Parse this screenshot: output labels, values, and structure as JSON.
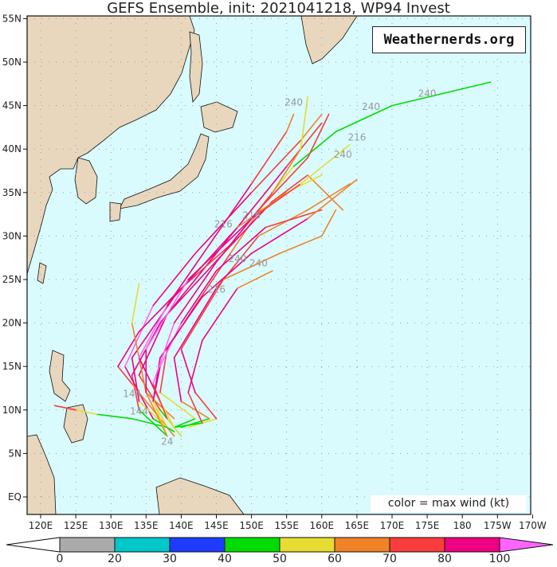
{
  "title": "GEFS Ensemble, init: 2021041218, WP94 Invest",
  "credit": "Weathernerds.org",
  "legend_note": "color = max wind (kt)",
  "map": {
    "lon_range": [
      118,
      190
    ],
    "lat_range": [
      -2,
      56
    ],
    "lon_ticks": [
      "120E",
      "125E",
      "130E",
      "135E",
      "140E",
      "145E",
      "150E",
      "155E",
      "160E",
      "165E",
      "170E",
      "175E",
      "180",
      "175W",
      "170W"
    ],
    "lat_ticks": [
      "EQ",
      "5N",
      "10N",
      "15N",
      "20N",
      "25N",
      "30N",
      "35N",
      "40N",
      "45N",
      "50N",
      "55N"
    ],
    "ocean_color": "#d9fbfd",
    "land_color": "#e8d7bd",
    "grid": true
  },
  "colorbar": {
    "unit": "kt",
    "ticks": [
      "0",
      "20",
      "30",
      "40",
      "50",
      "60",
      "70",
      "80",
      "100"
    ],
    "bins": [
      {
        "min": 0,
        "max": 20,
        "color": "#aaaaaa"
      },
      {
        "min": 20,
        "max": 30,
        "color": "#00c8c8"
      },
      {
        "min": 30,
        "max": 40,
        "color": "#1e3cff"
      },
      {
        "min": 40,
        "max": 50,
        "color": "#00dc00"
      },
      {
        "min": 50,
        "max": 60,
        "color": "#e6dc32"
      },
      {
        "min": 60,
        "max": 70,
        "color": "#f08228"
      },
      {
        "min": 70,
        "max": 80,
        "color": "#fa3c3c"
      },
      {
        "min": 80,
        "max": 100,
        "color": "#f00082"
      },
      {
        "min": 100,
        "max": null,
        "color": "#ff64ff"
      }
    ]
  },
  "tracks": [
    [
      [
        139,
        8,
        35
      ],
      [
        142,
        9,
        40
      ],
      [
        137,
        12,
        55
      ],
      [
        138,
        17,
        75
      ],
      [
        142,
        22,
        85
      ],
      [
        147,
        28,
        75
      ],
      [
        152,
        34,
        60
      ],
      [
        156,
        38,
        50
      ],
      [
        162,
        42,
        45
      ],
      [
        170,
        45,
        45
      ],
      [
        184,
        47.7,
        45
      ]
    ],
    [
      [
        138,
        7,
        30
      ],
      [
        134,
        10,
        45
      ],
      [
        133,
        14,
        70
      ],
      [
        137,
        20,
        90
      ],
      [
        143,
        26,
        95
      ],
      [
        150,
        33,
        85
      ],
      [
        155,
        38,
        80
      ],
      [
        160,
        43,
        75
      ]
    ],
    [
      [
        139,
        7.5,
        30
      ],
      [
        136,
        9,
        40
      ],
      [
        132,
        15,
        80
      ],
      [
        136,
        22,
        100
      ],
      [
        142,
        28,
        95
      ],
      [
        150,
        35,
        85
      ],
      [
        157,
        41,
        70
      ],
      [
        160,
        44,
        65
      ]
    ],
    [
      [
        140,
        8,
        35
      ],
      [
        144,
        9,
        45
      ],
      [
        140,
        11,
        60
      ],
      [
        139,
        16,
        85
      ],
      [
        145,
        24,
        90
      ],
      [
        151,
        30,
        70
      ],
      [
        158,
        33,
        60
      ],
      [
        164,
        36,
        65
      ]
    ],
    [
      [
        138,
        8,
        30
      ],
      [
        136,
        11,
        50
      ],
      [
        137,
        15,
        85
      ],
      [
        140,
        20,
        100
      ],
      [
        145,
        26,
        95
      ],
      [
        152,
        31,
        80
      ],
      [
        160,
        33,
        70
      ]
    ],
    [
      [
        139,
        7,
        30
      ],
      [
        133,
        13,
        60
      ],
      [
        131,
        15,
        75
      ],
      [
        134,
        19,
        90
      ],
      [
        140,
        24,
        85
      ],
      [
        147,
        29,
        75
      ],
      [
        153,
        35,
        70
      ],
      [
        157,
        40,
        60
      ],
      [
        158,
        46,
        55
      ]
    ],
    [
      [
        140,
        7,
        30
      ],
      [
        137,
        10,
        45
      ],
      [
        134,
        14,
        70
      ],
      [
        138,
        21,
        95
      ],
      [
        146,
        28,
        90
      ],
      [
        153,
        34,
        80
      ],
      [
        158,
        37,
        70
      ],
      [
        163,
        33,
        65
      ]
    ],
    [
      [
        138,
        8,
        30
      ],
      [
        134,
        11,
        55
      ],
      [
        133,
        16,
        85
      ],
      [
        139,
        23,
        95
      ],
      [
        148,
        31,
        85
      ],
      [
        155,
        35,
        60
      ],
      [
        160,
        37,
        55
      ]
    ],
    [
      [
        138,
        8,
        30
      ],
      [
        133,
        9,
        40
      ],
      [
        128,
        9.5,
        45
      ],
      [
        125,
        10,
        50
      ],
      [
        122,
        10.5,
        70
      ]
    ],
    [
      [
        139,
        9,
        40
      ],
      [
        135,
        12,
        60
      ],
      [
        133,
        20,
        60
      ],
      [
        134,
        24.5,
        55
      ]
    ],
    [
      [
        141,
        8,
        40
      ],
      [
        145,
        9,
        55
      ],
      [
        142,
        12,
        70
      ],
      [
        140,
        17,
        90
      ],
      [
        146,
        25,
        75
      ],
      [
        154,
        28,
        60
      ],
      [
        160,
        30,
        60
      ],
      [
        162,
        33,
        60
      ]
    ],
    [
      [
        138,
        7,
        30
      ],
      [
        136,
        11,
        55
      ],
      [
        137,
        16,
        90
      ],
      [
        143,
        23,
        95
      ],
      [
        150,
        28,
        85
      ],
      [
        158,
        32,
        80
      ],
      [
        165,
        36.5,
        60
      ]
    ],
    [
      [
        139,
        8,
        35
      ],
      [
        143,
        8.5,
        45
      ],
      [
        141,
        12,
        70
      ],
      [
        143,
        18,
        95
      ],
      [
        148,
        24,
        80
      ],
      [
        153,
        26,
        60
      ]
    ],
    [
      [
        138,
        7,
        30
      ],
      [
        135,
        12,
        60
      ],
      [
        135,
        17,
        90
      ],
      [
        141,
        25,
        100
      ],
      [
        150,
        32,
        90
      ],
      [
        157,
        36,
        75
      ],
      [
        164,
        40.5,
        55
      ]
    ],
    [
      [
        139,
        8,
        30
      ],
      [
        137,
        11,
        50
      ],
      [
        134,
        16,
        85
      ],
      [
        138,
        22,
        100
      ],
      [
        144,
        29,
        90
      ],
      [
        150,
        36,
        80
      ],
      [
        155,
        42,
        75
      ],
      [
        156,
        44,
        60
      ]
    ],
    [
      [
        140,
        7,
        35
      ],
      [
        138,
        9,
        50
      ],
      [
        136,
        13,
        75
      ],
      [
        139,
        20,
        100
      ],
      [
        145,
        27,
        90
      ],
      [
        151,
        33,
        85
      ],
      [
        158,
        39,
        75
      ],
      [
        161,
        44,
        70
      ]
    ]
  ],
  "track_labels": [
    {
      "text": "240",
      "lon": 175,
      "lat": 46
    },
    {
      "text": "240",
      "lon": 167,
      "lat": 44.5
    },
    {
      "text": "240",
      "lon": 156,
      "lat": 45
    },
    {
      "text": "240",
      "lon": 163,
      "lat": 39
    },
    {
      "text": "216",
      "lon": 165,
      "lat": 41
    },
    {
      "text": "216",
      "lon": 150,
      "lat": 32
    },
    {
      "text": "216",
      "lon": 146,
      "lat": 31
    },
    {
      "text": "240",
      "lon": 148,
      "lat": 27
    },
    {
      "text": "240",
      "lon": 151,
      "lat": 26.5
    },
    {
      "text": "216",
      "lon": 145,
      "lat": 23.5
    },
    {
      "text": "144",
      "lon": 133,
      "lat": 11.5
    },
    {
      "text": "144",
      "lon": 134,
      "lat": 9.5
    },
    {
      "text": "24",
      "lon": 138,
      "lat": 6
    }
  ]
}
